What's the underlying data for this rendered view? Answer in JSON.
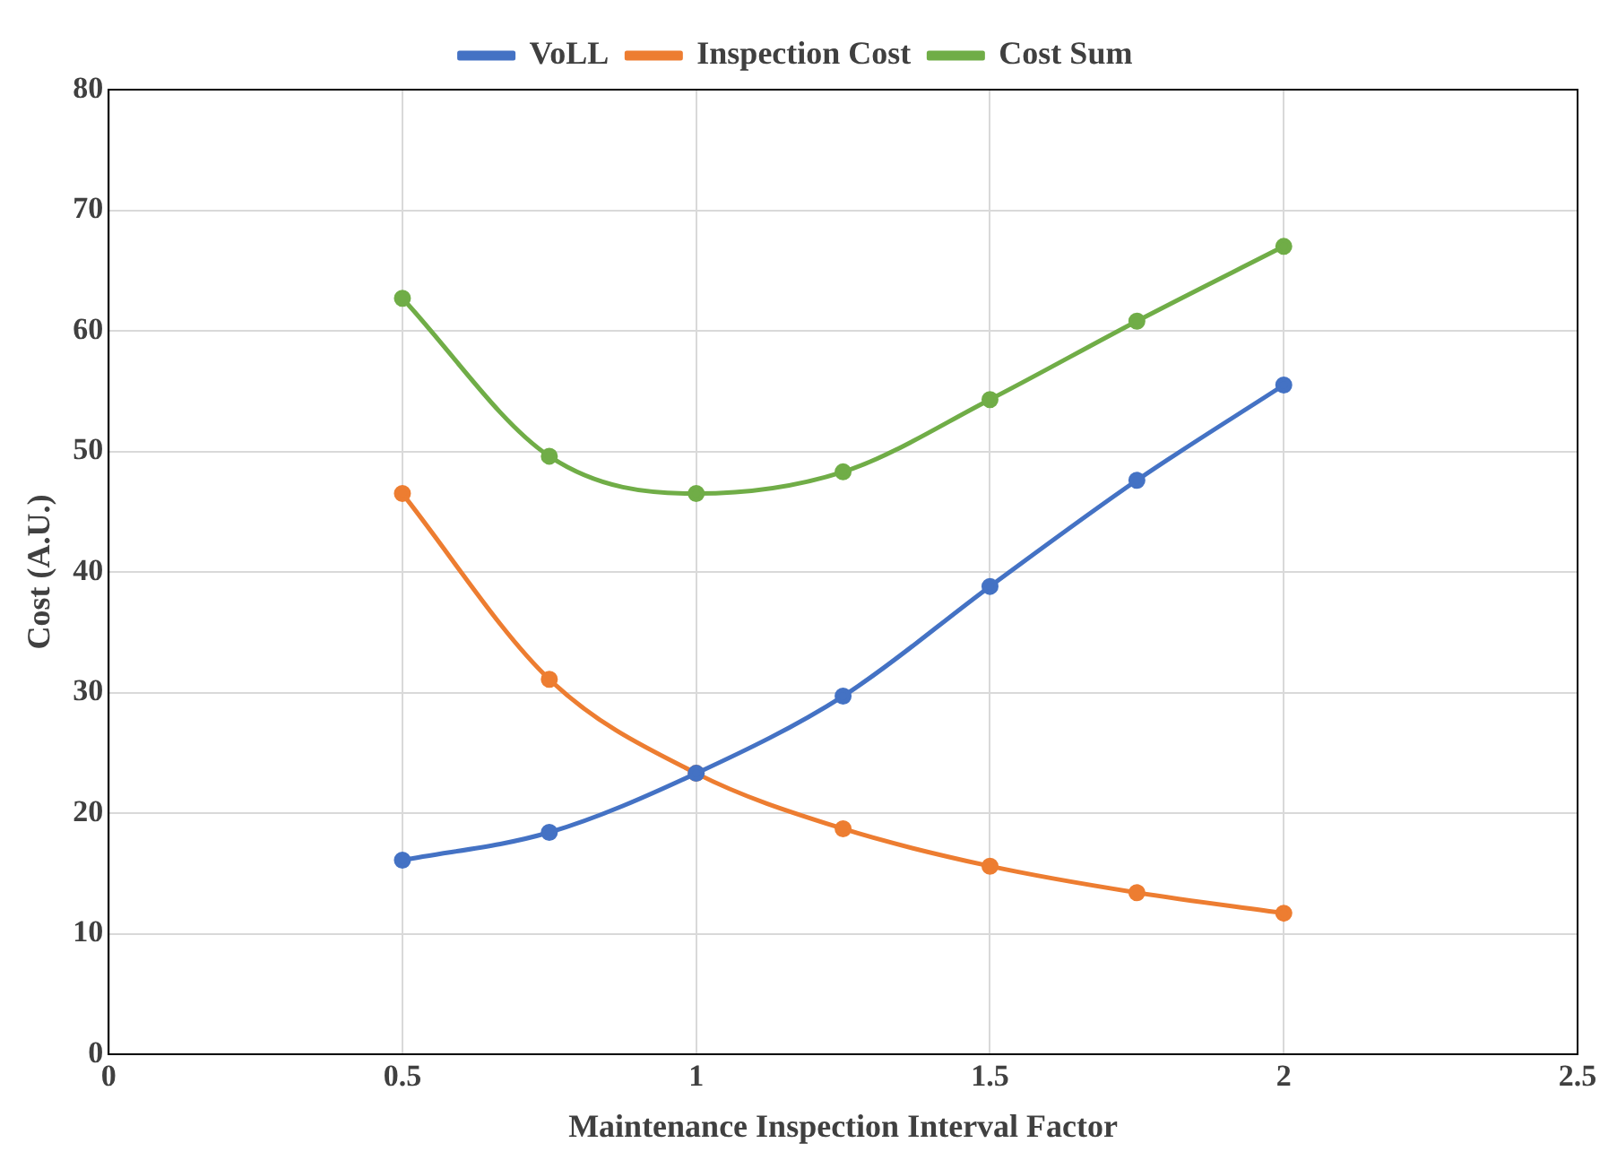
{
  "chart_data": {
    "type": "line",
    "xlabel": "Maintenance Inspection Interval Factor",
    "ylabel": "Cost (A.U.)",
    "x": [
      0.5,
      0.75,
      1,
      1.25,
      1.5,
      1.75,
      2
    ],
    "series": [
      {
        "name": "VoLL",
        "color": "#4472c4",
        "values": [
          16.1,
          18.4,
          23.3,
          29.7,
          38.8,
          47.6,
          55.5
        ]
      },
      {
        "name": "Inspection Cost",
        "color": "#ed7d31",
        "values": [
          46.5,
          31.1,
          23.3,
          18.7,
          15.6,
          13.4,
          11.7
        ]
      },
      {
        "name": "Cost Sum",
        "color": "#70ad47",
        "values": [
          62.7,
          49.6,
          46.5,
          48.3,
          54.3,
          60.8,
          67
        ]
      }
    ],
    "xlim": [
      0,
      2.5
    ],
    "xticks": [
      0,
      0.5,
      1,
      1.5,
      2,
      2.5
    ],
    "ylim": [
      0,
      80
    ],
    "yticks": [
      0,
      10,
      20,
      30,
      40,
      50,
      60,
      70,
      80
    ],
    "grid": true,
    "legend": "top",
    "marker": "circle",
    "line_style": "solid"
  }
}
